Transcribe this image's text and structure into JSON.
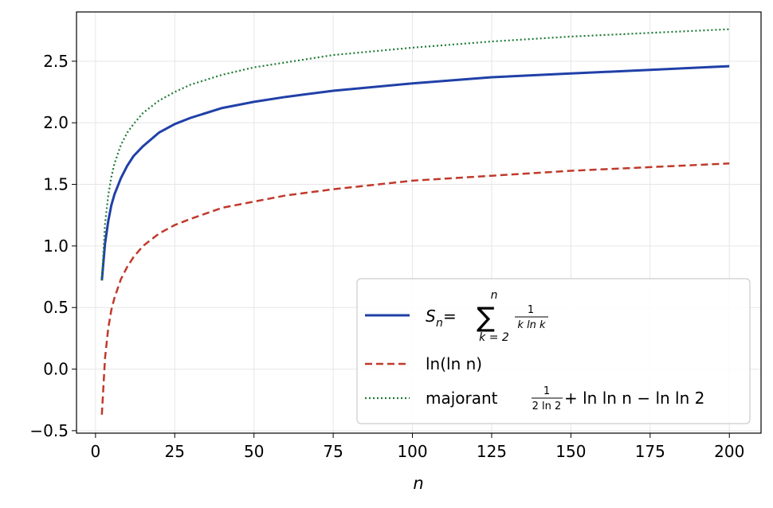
{
  "chart_data": {
    "type": "line",
    "xlabel": "n",
    "ylabel": "",
    "xlim": [
      -6,
      210
    ],
    "ylim": [
      -0.52,
      2.9
    ],
    "x_ticks": [
      0,
      25,
      50,
      75,
      100,
      125,
      150,
      175,
      200
    ],
    "y_ticks": [
      -0.5,
      0.0,
      0.5,
      1.0,
      1.5,
      2.0,
      2.5
    ],
    "x_tick_labels": [
      "0",
      "25",
      "50",
      "75",
      "100",
      "125",
      "150",
      "175",
      "200"
    ],
    "y_tick_labels": [
      "−0.5",
      "0.0",
      "0.5",
      "1.0",
      "1.5",
      "2.0",
      "2.5"
    ],
    "grid": true,
    "legend_position": "lower-right",
    "x": [
      2,
      3,
      4,
      5,
      6,
      8,
      10,
      12,
      15,
      20,
      25,
      30,
      40,
      50,
      60,
      75,
      100,
      125,
      150,
      175,
      200
    ],
    "series": [
      {
        "name": "S_n = Σ 1/(k ln k)",
        "style": "solid",
        "color": "#2040a8",
        "values": [
          0.72,
          1.02,
          1.2,
          1.33,
          1.42,
          1.55,
          1.65,
          1.73,
          1.81,
          1.92,
          1.99,
          2.04,
          2.12,
          2.17,
          2.21,
          2.26,
          2.32,
          2.37,
          2.4,
          2.43,
          2.46
        ]
      },
      {
        "name": "ln(ln n)",
        "style": "dashed",
        "color": "#c0392b",
        "values": [
          -0.37,
          0.09,
          0.33,
          0.48,
          0.58,
          0.73,
          0.83,
          0.91,
          1.0,
          1.1,
          1.17,
          1.22,
          1.31,
          1.36,
          1.41,
          1.46,
          1.53,
          1.57,
          1.61,
          1.64,
          1.67
        ]
      },
      {
        "name": "majorant 1/(2 ln 2) + ln ln n − ln ln 2",
        "style": "dotted",
        "color": "#1e7b34",
        "values": [
          0.72,
          1.18,
          1.41,
          1.56,
          1.67,
          1.82,
          1.92,
          1.99,
          2.08,
          2.18,
          2.25,
          2.31,
          2.39,
          2.45,
          2.49,
          2.55,
          2.61,
          2.66,
          2.7,
          2.73,
          2.76
        ]
      }
    ],
    "legend": {
      "s_main": "S",
      "s_sub": "n",
      "s_eq": " = ",
      "sum_symbol": "∑",
      "sum_upper": "n",
      "sum_lower": "k = 2",
      "frac_num": "1",
      "frac_den": "k ln k",
      "ln_label": "ln(ln n)",
      "maj_word": "majorant ",
      "maj_num": "1",
      "maj_den": "2 ln 2",
      "maj_rest": " + ln ln n − ln ln 2"
    }
  }
}
